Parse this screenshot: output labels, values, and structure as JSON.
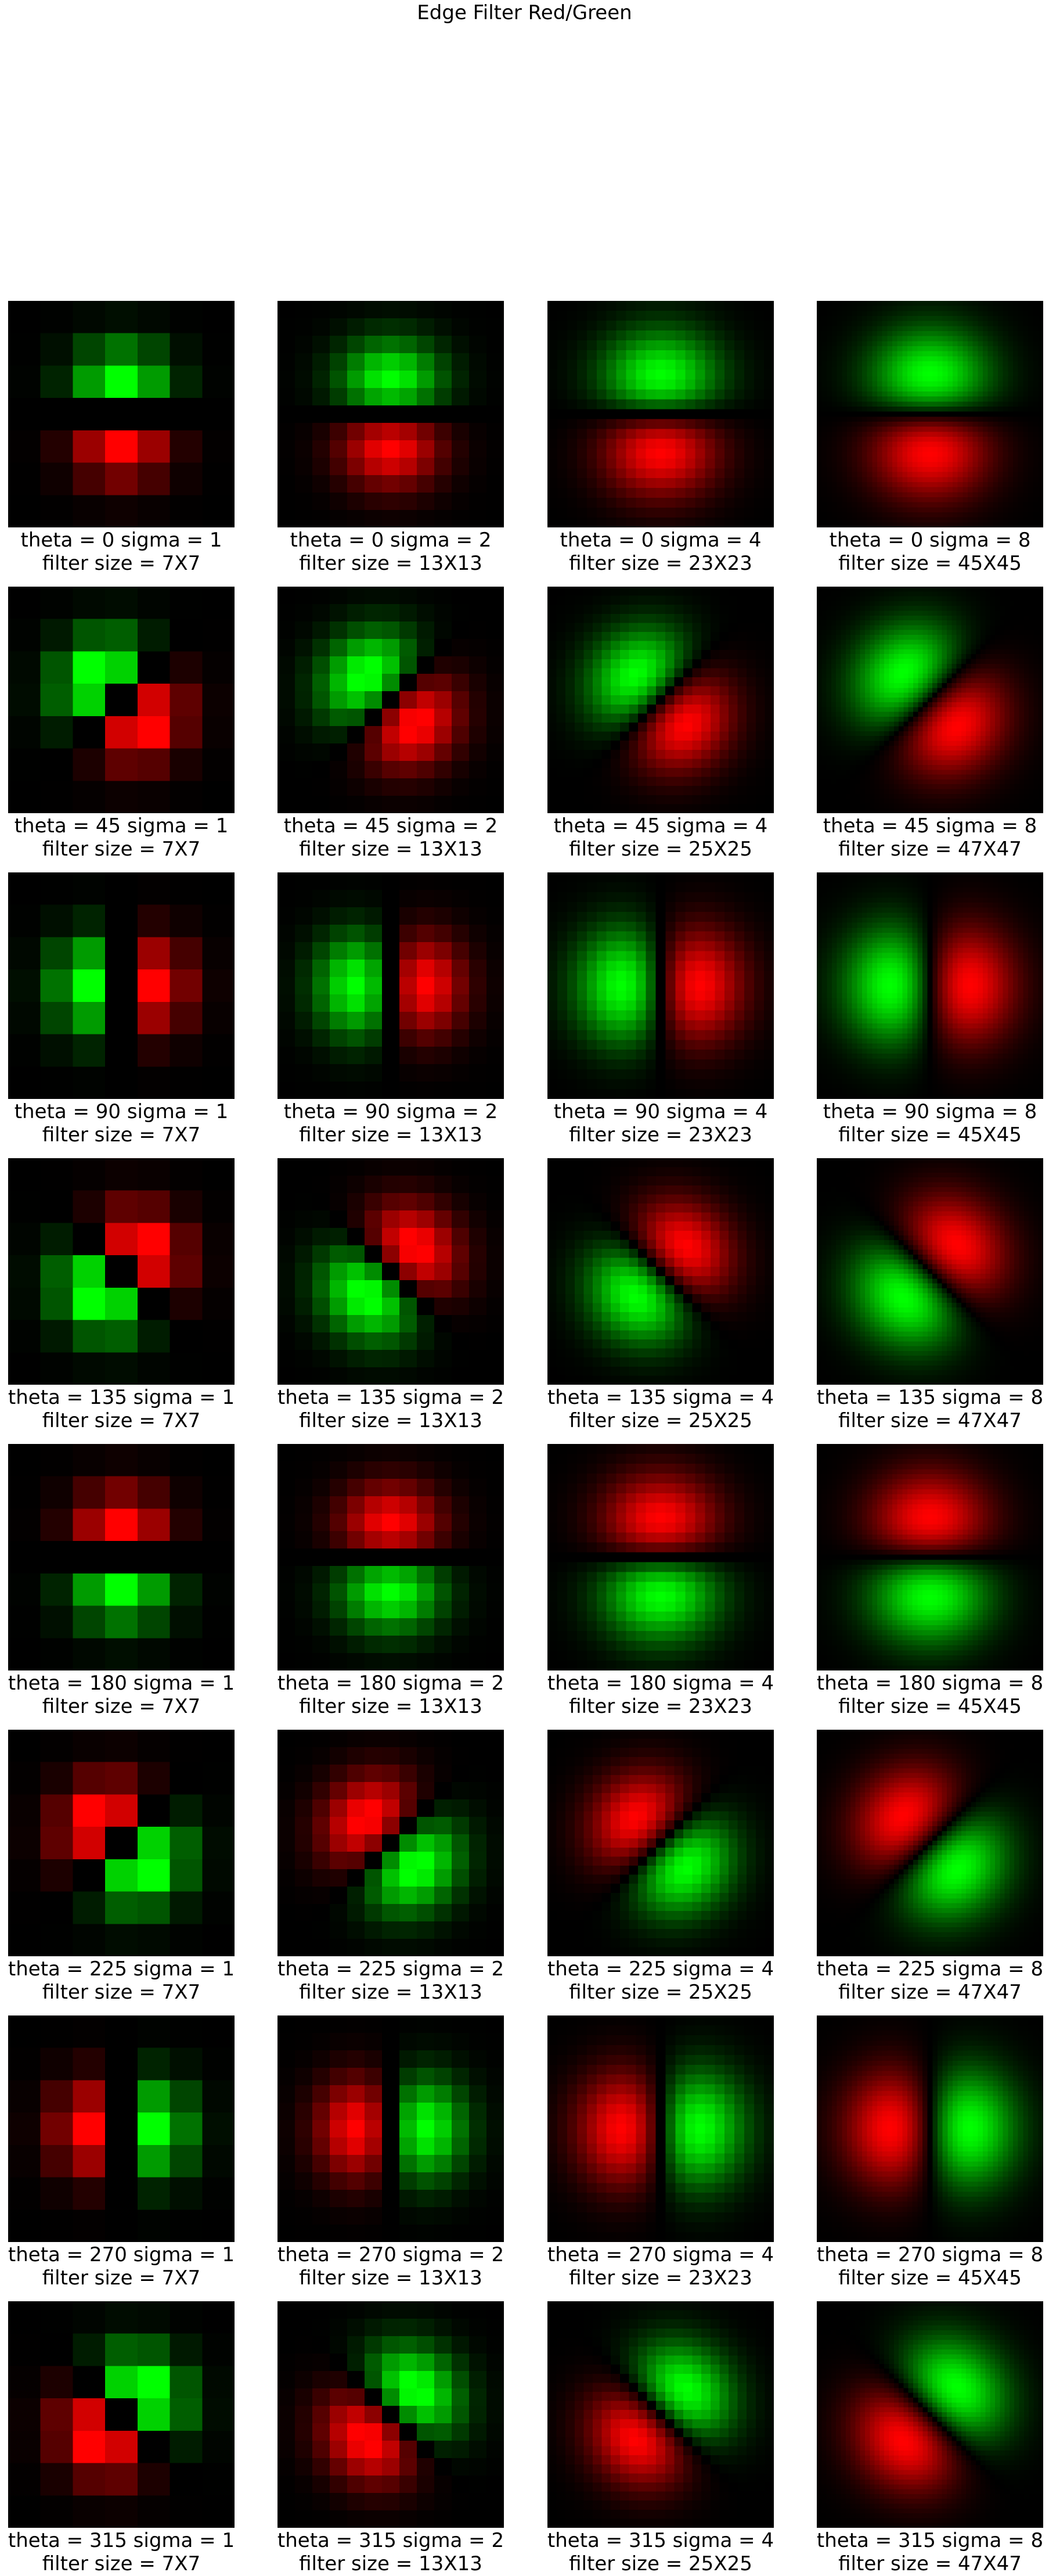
{
  "title": "Edge Filter Red/Green",
  "panels": [
    {
      "theta": 0,
      "sigma": 1,
      "size": 7,
      "caption1": "theta = 0 sigma = 1",
      "caption2": "filter size = 7X7"
    },
    {
      "theta": 0,
      "sigma": 2,
      "size": 13,
      "caption1": "theta = 0 sigma = 2",
      "caption2": "filter size = 13X13"
    },
    {
      "theta": 0,
      "sigma": 4,
      "size": 23,
      "caption1": "theta = 0 sigma = 4",
      "caption2": "filter size = 23X23"
    },
    {
      "theta": 0,
      "sigma": 8,
      "size": 45,
      "caption1": "theta = 0 sigma = 8",
      "caption2": "filter size = 45X45"
    },
    {
      "theta": 45,
      "sigma": 1,
      "size": 7,
      "caption1": "theta = 45 sigma = 1",
      "caption2": "filter size = 7X7"
    },
    {
      "theta": 45,
      "sigma": 2,
      "size": 13,
      "caption1": "theta = 45 sigma = 2",
      "caption2": "filter size = 13X13"
    },
    {
      "theta": 45,
      "sigma": 4,
      "size": 25,
      "caption1": "theta = 45 sigma = 4",
      "caption2": "filter size = 25X25"
    },
    {
      "theta": 45,
      "sigma": 8,
      "size": 47,
      "caption1": "theta = 45 sigma = 8",
      "caption2": "filter size = 47X47"
    },
    {
      "theta": 90,
      "sigma": 1,
      "size": 7,
      "caption1": "theta = 90 sigma = 1",
      "caption2": "filter size = 7X7"
    },
    {
      "theta": 90,
      "sigma": 2,
      "size": 13,
      "caption1": "theta = 90 sigma = 2",
      "caption2": "filter size = 13X13"
    },
    {
      "theta": 90,
      "sigma": 4,
      "size": 23,
      "caption1": "theta = 90 sigma = 4",
      "caption2": "filter size = 23X23"
    },
    {
      "theta": 90,
      "sigma": 8,
      "size": 45,
      "caption1": "theta = 90 sigma = 8",
      "caption2": "filter size = 45X45"
    },
    {
      "theta": 135,
      "sigma": 1,
      "size": 7,
      "caption1": "theta = 135 sigma = 1",
      "caption2": "filter size = 7X7"
    },
    {
      "theta": 135,
      "sigma": 2,
      "size": 13,
      "caption1": "theta = 135 sigma = 2",
      "caption2": "filter size = 13X13"
    },
    {
      "theta": 135,
      "sigma": 4,
      "size": 25,
      "caption1": "theta = 135 sigma = 4",
      "caption2": "filter size = 25X25"
    },
    {
      "theta": 135,
      "sigma": 8,
      "size": 47,
      "caption1": "theta = 135 sigma = 8",
      "caption2": "filter size = 47X47"
    },
    {
      "theta": 180,
      "sigma": 1,
      "size": 7,
      "caption1": "theta = 180 sigma = 1",
      "caption2": "filter size = 7X7"
    },
    {
      "theta": 180,
      "sigma": 2,
      "size": 13,
      "caption1": "theta = 180 sigma = 2",
      "caption2": "filter size = 13X13"
    },
    {
      "theta": 180,
      "sigma": 4,
      "size": 23,
      "caption1": "theta = 180 sigma = 4",
      "caption2": "filter size = 23X23"
    },
    {
      "theta": 180,
      "sigma": 8,
      "size": 45,
      "caption1": "theta = 180 sigma = 8",
      "caption2": "filter size = 45X45"
    },
    {
      "theta": 225,
      "sigma": 1,
      "size": 7,
      "caption1": "theta = 225 sigma = 1",
      "caption2": "filter size = 7X7"
    },
    {
      "theta": 225,
      "sigma": 2,
      "size": 13,
      "caption1": "theta = 225 sigma = 2",
      "caption2": "filter size = 13X13"
    },
    {
      "theta": 225,
      "sigma": 4,
      "size": 25,
      "caption1": "theta = 225 sigma = 4",
      "caption2": "filter size = 25X25"
    },
    {
      "theta": 225,
      "sigma": 8,
      "size": 47,
      "caption1": "theta = 225 sigma = 8",
      "caption2": "filter size = 47X47"
    },
    {
      "theta": 270,
      "sigma": 1,
      "size": 7,
      "caption1": "theta = 270 sigma = 1",
      "caption2": "filter size = 7X7"
    },
    {
      "theta": 270,
      "sigma": 2,
      "size": 13,
      "caption1": "theta = 270 sigma = 2",
      "caption2": "filter size = 13X13"
    },
    {
      "theta": 270,
      "sigma": 4,
      "size": 23,
      "caption1": "theta = 270 sigma = 4",
      "caption2": "filter size = 23X23"
    },
    {
      "theta": 270,
      "sigma": 8,
      "size": 45,
      "caption1": "theta = 270 sigma = 8",
      "caption2": "filter size = 45X45"
    },
    {
      "theta": 315,
      "sigma": 1,
      "size": 7,
      "caption1": "theta = 315 sigma = 1",
      "caption2": "filter size = 7X7"
    },
    {
      "theta": 315,
      "sigma": 2,
      "size": 13,
      "caption1": "theta = 315 sigma = 2",
      "caption2": "filter size = 13X13"
    },
    {
      "theta": 315,
      "sigma": 4,
      "size": 25,
      "caption1": "theta = 315 sigma = 4",
      "caption2": "filter size = 25X25"
    },
    {
      "theta": 315,
      "sigma": 8,
      "size": 47,
      "caption1": "theta = 315 sigma = 8",
      "caption2": "filter size = 47X47"
    }
  ],
  "colors": {
    "positive": "#00ff00",
    "negative": "#ff0000",
    "background": "#000000"
  }
}
